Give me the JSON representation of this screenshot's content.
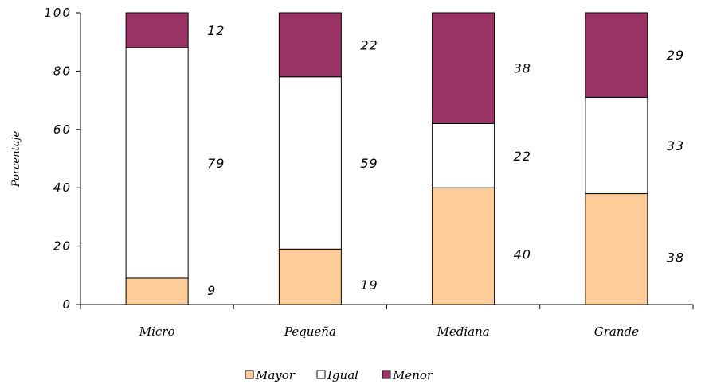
{
  "chart_data": {
    "type": "bar",
    "stacked": true,
    "percent": true,
    "title": "",
    "xlabel": "",
    "ylabel": "Porcentaje",
    "ylim": [
      0,
      100
    ],
    "yticks": [
      0,
      20,
      40,
      60,
      80,
      100
    ],
    "categories": [
      "Micro",
      "Pequeña",
      "Mediana",
      "Grande"
    ],
    "series": [
      {
        "name": "Mayor",
        "color": "#FFCC99",
        "values": [
          9,
          19,
          40,
          38
        ]
      },
      {
        "name": "Igual",
        "color": "#FFFFFF",
        "values": [
          79,
          59,
          22,
          33
        ]
      },
      {
        "name": "Menor",
        "color": "#993366",
        "values": [
          12,
          22,
          38,
          29
        ]
      }
    ],
    "grid": false,
    "legend_position": "bottom"
  }
}
